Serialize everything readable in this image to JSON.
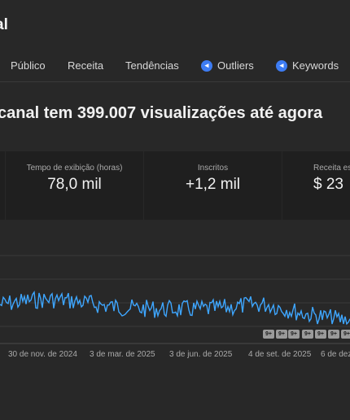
{
  "header": {
    "title": "al"
  },
  "tabs": [
    {
      "label": "Público",
      "icon": null
    },
    {
      "label": "Receita",
      "icon": null
    },
    {
      "label": "Tendências",
      "icon": null
    },
    {
      "label": "Outliers",
      "icon": "extension-icon"
    },
    {
      "label": "Keywords",
      "icon": "extension-icon"
    }
  ],
  "headline": "canal tem 399.007 visualizações até agora",
  "metrics": [
    {
      "label": "",
      "value": ""
    },
    {
      "label": "Tempo de exibição (horas)",
      "value": "78,0 mil"
    },
    {
      "label": "Inscritos",
      "value": "+1,2 mil"
    },
    {
      "label": "Receita es",
      "value": "$ 23"
    }
  ],
  "chart_data": {
    "type": "line",
    "series_color": "#3ea6ff",
    "x_labels": [
      "30 de nov. de 2024",
      "3 de mar. de 2025",
      "3 de jun. de 2025",
      "4 de set. de 2025",
      "6 de dez."
    ],
    "grid": true
  },
  "markers": [
    "9+",
    "9+",
    "9+",
    "9+",
    "9+",
    "9+",
    "9+"
  ]
}
